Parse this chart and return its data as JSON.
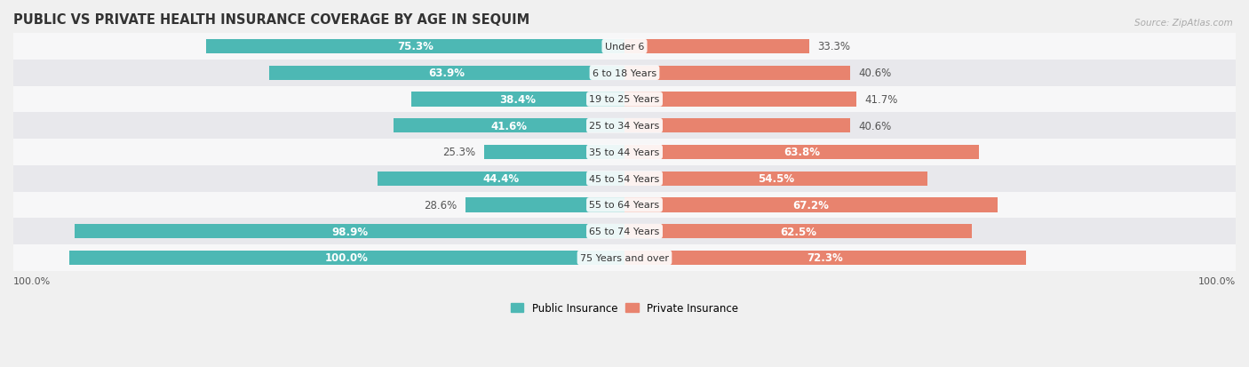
{
  "title": "PUBLIC VS PRIVATE HEALTH INSURANCE COVERAGE BY AGE IN SEQUIM",
  "source": "Source: ZipAtlas.com",
  "categories": [
    "Under 6",
    "6 to 18 Years",
    "19 to 25 Years",
    "25 to 34 Years",
    "35 to 44 Years",
    "45 to 54 Years",
    "55 to 64 Years",
    "65 to 74 Years",
    "75 Years and over"
  ],
  "public_values": [
    75.3,
    63.9,
    38.4,
    41.6,
    25.3,
    44.4,
    28.6,
    98.9,
    100.0
  ],
  "private_values": [
    33.3,
    40.6,
    41.7,
    40.6,
    63.8,
    54.5,
    67.2,
    62.5,
    72.3
  ],
  "public_color": "#4db8b4",
  "private_color": "#e8836e",
  "bg_color": "#f0f0f0",
  "row_bg_light": "#f7f7f8",
  "row_bg_dark": "#e8e8ec",
  "bar_height": 0.55,
  "title_fontsize": 10.5,
  "label_fontsize": 8.5,
  "tick_fontsize": 8,
  "legend_fontsize": 8.5,
  "pub_label_inside_threshold": 30,
  "priv_label_inside_threshold": 30
}
